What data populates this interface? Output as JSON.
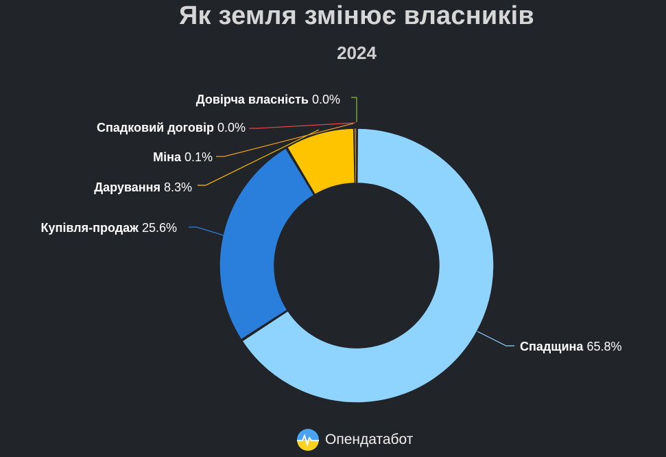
{
  "header": {
    "title": "Як земля змінює власників",
    "subtitle": "2024"
  },
  "brand": {
    "name": "Опендатабот",
    "logo_icon": "opendatabot-logo-icon"
  },
  "colors": {
    "background": "#212429",
    "label_text": "#ffffff",
    "title_text": "#d6d6d6"
  },
  "chart_data": {
    "type": "pie",
    "variant": "donut",
    "title": "Як земля змінює власників",
    "subtitle": "2024",
    "unit": "%",
    "slices": [
      {
        "name": "Спадщина",
        "value": 65.8,
        "value_label": "65.8%",
        "color": "#8fd4ff"
      },
      {
        "name": "Купівля-продаж",
        "value": 25.6,
        "value_label": "25.6%",
        "color": "#2b7fdc"
      },
      {
        "name": "Дарування",
        "value": 8.3,
        "value_label": "8.3%",
        "color": "#ffc400"
      },
      {
        "name": "Міна",
        "value": 0.1,
        "value_label": "0.1%",
        "color": "#f0a020"
      },
      {
        "name": "Спадковий договір",
        "value": 0.0,
        "value_label": "0.0%",
        "color": "#e84a4a"
      },
      {
        "name": "Довірча власність",
        "value": 0.0,
        "value_label": "0.0%",
        "color": "#8bbf40"
      }
    ]
  }
}
